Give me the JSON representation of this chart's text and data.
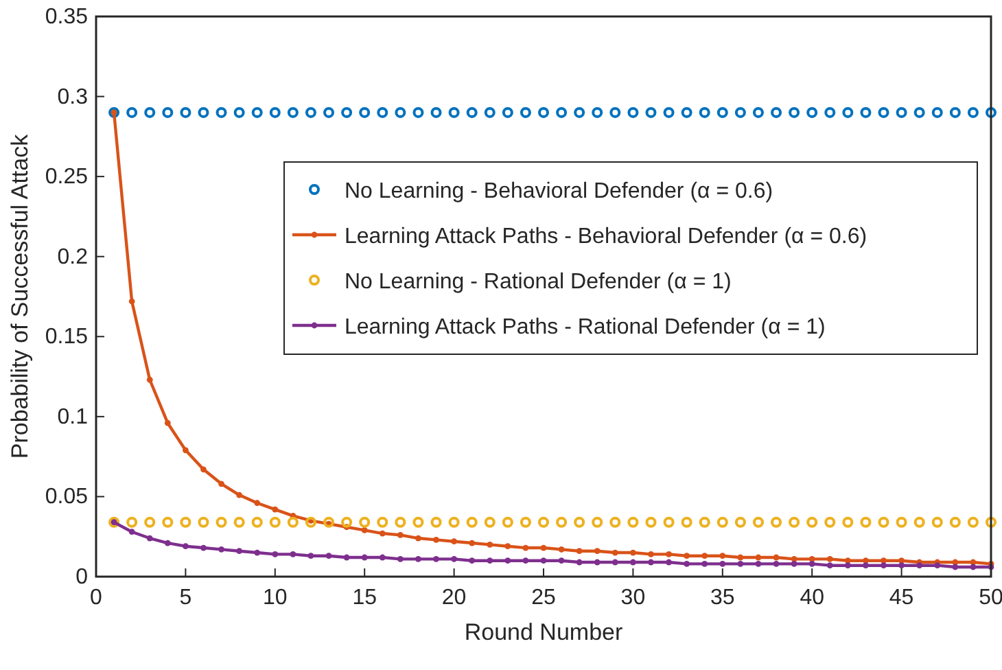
{
  "chart_data": {
    "type": "line",
    "xlabel": "Round Number",
    "ylabel": "Probability of Successful Attack",
    "x": [
      1,
      2,
      3,
      4,
      5,
      6,
      7,
      8,
      9,
      10,
      11,
      12,
      13,
      14,
      15,
      16,
      17,
      18,
      19,
      20,
      21,
      22,
      23,
      24,
      25,
      26,
      27,
      28,
      29,
      30,
      31,
      32,
      33,
      34,
      35,
      36,
      37,
      38,
      39,
      40,
      41,
      42,
      43,
      44,
      45,
      46,
      47,
      48,
      49,
      50
    ],
    "xlim": [
      0,
      50
    ],
    "xticks": [
      0,
      5,
      10,
      15,
      20,
      25,
      30,
      35,
      40,
      45,
      50
    ],
    "ylim": [
      0,
      0.35
    ],
    "yticks": [
      0,
      0.05,
      0.1,
      0.15,
      0.2,
      0.25,
      0.3,
      0.35
    ],
    "grid": false,
    "legend": "top right",
    "series": [
      {
        "name": "No Learning - Behavioral Defender (α = 0.6)",
        "type": "scatter",
        "marker": "circle",
        "color": "#0072bd",
        "values": [
          0.29,
          0.29,
          0.29,
          0.29,
          0.29,
          0.29,
          0.29,
          0.29,
          0.29,
          0.29,
          0.29,
          0.29,
          0.29,
          0.29,
          0.29,
          0.29,
          0.29,
          0.29,
          0.29,
          0.29,
          0.29,
          0.29,
          0.29,
          0.29,
          0.29,
          0.29,
          0.29,
          0.29,
          0.29,
          0.29,
          0.29,
          0.29,
          0.29,
          0.29,
          0.29,
          0.29,
          0.29,
          0.29,
          0.29,
          0.29,
          0.29,
          0.29,
          0.29,
          0.29,
          0.29,
          0.29,
          0.29,
          0.29,
          0.29,
          0.29
        ]
      },
      {
        "name": "Learning Attack Paths - Behavioral Defender (α = 0.6)",
        "marker": "circle",
        "line_style": "solid",
        "color": "#d95319",
        "values": [
          0.29,
          0.172,
          0.123,
          0.096,
          0.079,
          0.067,
          0.058,
          0.051,
          0.046,
          0.042,
          0.038,
          0.035,
          0.033,
          0.031,
          0.029,
          0.027,
          0.026,
          0.024,
          0.023,
          0.022,
          0.021,
          0.02,
          0.019,
          0.018,
          0.018,
          0.017,
          0.016,
          0.016,
          0.015,
          0.015,
          0.014,
          0.014,
          0.013,
          0.013,
          0.013,
          0.012,
          0.012,
          0.012,
          0.011,
          0.011,
          0.011,
          0.01,
          0.01,
          0.01,
          0.01,
          0.009,
          0.009,
          0.009,
          0.009,
          0.008
        ]
      },
      {
        "name": "No Learning - Rational Defender (α = 1)",
        "type": "scatter",
        "marker": "circle",
        "color": "#edb120",
        "values": [
          0.034,
          0.034,
          0.034,
          0.034,
          0.034,
          0.034,
          0.034,
          0.034,
          0.034,
          0.034,
          0.034,
          0.034,
          0.034,
          0.034,
          0.034,
          0.034,
          0.034,
          0.034,
          0.034,
          0.034,
          0.034,
          0.034,
          0.034,
          0.034,
          0.034,
          0.034,
          0.034,
          0.034,
          0.034,
          0.034,
          0.034,
          0.034,
          0.034,
          0.034,
          0.034,
          0.034,
          0.034,
          0.034,
          0.034,
          0.034,
          0.034,
          0.034,
          0.034,
          0.034,
          0.034,
          0.034,
          0.034,
          0.034,
          0.034,
          0.034
        ]
      },
      {
        "name": "Learning Attack Paths - Rational Defender (α = 1)",
        "marker": "circle",
        "line_style": "solid",
        "color": "#7e2f8e",
        "values": [
          0.034,
          0.028,
          0.024,
          0.021,
          0.019,
          0.018,
          0.017,
          0.016,
          0.015,
          0.014,
          0.014,
          0.013,
          0.013,
          0.012,
          0.012,
          0.012,
          0.011,
          0.011,
          0.011,
          0.011,
          0.01,
          0.01,
          0.01,
          0.01,
          0.01,
          0.01,
          0.009,
          0.009,
          0.009,
          0.009,
          0.009,
          0.009,
          0.008,
          0.008,
          0.008,
          0.008,
          0.008,
          0.008,
          0.008,
          0.008,
          0.007,
          0.007,
          0.007,
          0.007,
          0.007,
          0.007,
          0.007,
          0.006,
          0.006,
          0.006
        ]
      }
    ]
  }
}
